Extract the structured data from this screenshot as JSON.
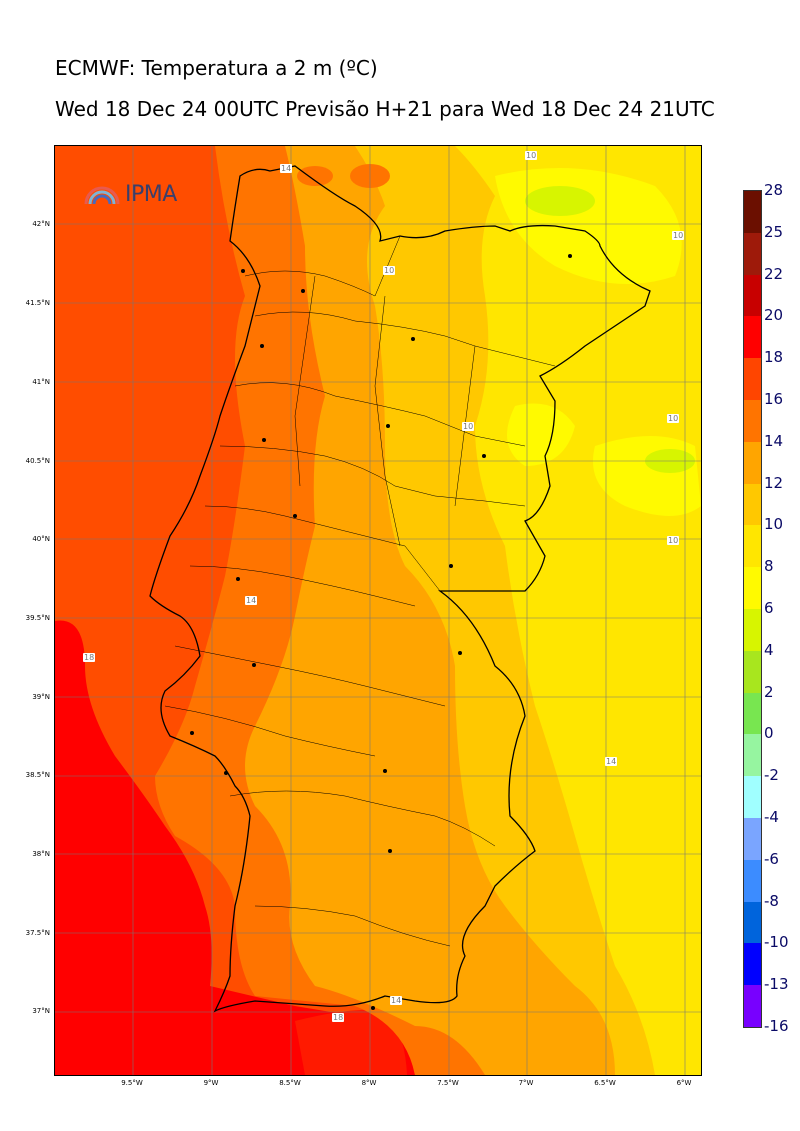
{
  "title": {
    "line1": "ECMWF: Temperatura a 2 m (ºC)",
    "line2": "Wed 18 Dec 24 00UTC Previsão H+21 para Wed 18 Dec 24 21UTC"
  },
  "logo": {
    "text": "IPMA"
  },
  "lat_labels": [
    "42°N",
    "41.5°N",
    "41°N",
    "40.5°N",
    "40°N",
    "39.5°N",
    "39°N",
    "38.5°N",
    "38°N",
    "37.5°N",
    "37°N"
  ],
  "lon_labels": [
    "9.5°W",
    "9°W",
    "8.5°W",
    "8°W",
    "7.5°W",
    "7°W",
    "6.5°W",
    "6°W"
  ],
  "colorbar": {
    "labels": [
      "28",
      "25",
      "22",
      "20",
      "18",
      "16",
      "14",
      "12",
      "10",
      "8",
      "6",
      "4",
      "2",
      "0",
      "-2",
      "-4",
      "-6",
      "-8",
      "-10",
      "-13",
      "-16"
    ],
    "colors": [
      "#6b0f00",
      "#9e1a0a",
      "#c80000",
      "#ff0000",
      "#ff4500",
      "#ff7400",
      "#ffa500",
      "#ffc800",
      "#ffe600",
      "#fffa00",
      "#d7f500",
      "#a8e61e",
      "#78e650",
      "#96f5a0",
      "#a0ffff",
      "#7aa5ff",
      "#3c8cff",
      "#0064dc",
      "#0000ff",
      "#7800ff",
      "#e600ff"
    ]
  },
  "contour_labels": [
    "10",
    "10",
    "10",
    "10",
    "10",
    "10",
    "14",
    "14",
    "14",
    "14",
    "18",
    "18",
    "18"
  ],
  "colors": {
    "sea_warm": "#ff0000",
    "sea": "#ff4d00",
    "band16": "#ff7400",
    "band14": "#ffa500",
    "band12": "#ffc800",
    "band10": "#ffe600",
    "band8": "#fffa00",
    "band6": "#d7f500"
  }
}
